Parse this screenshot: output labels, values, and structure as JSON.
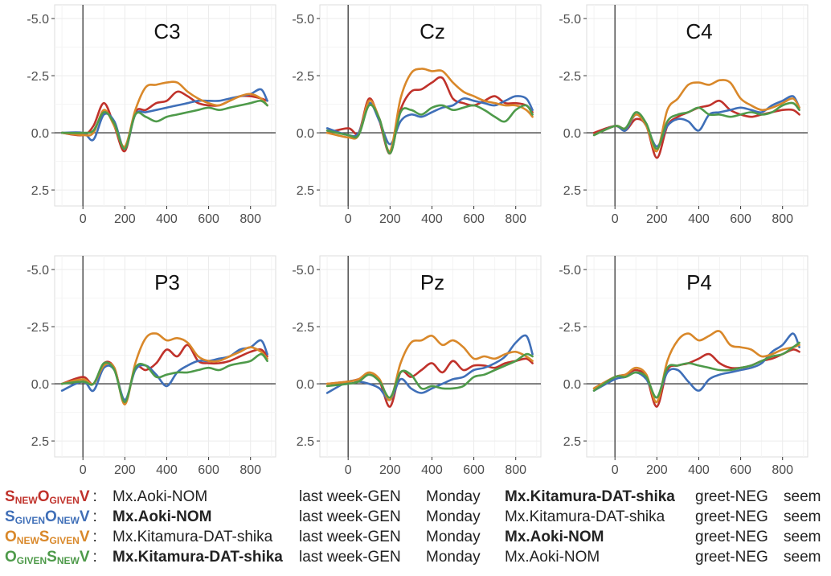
{
  "colors": {
    "SnewOgivenV": "#c0322b",
    "SgivenOnewV": "#3f6fb8",
    "OnewSgivenV": "#d9882a",
    "OgivenSnewV": "#4e9a4a",
    "panel_bg": "#ffffff",
    "grid": "#ebebeb",
    "zero_line": "#444444"
  },
  "chart_data": [
    {
      "type": "line",
      "title": "C3",
      "x": [
        -100,
        0,
        50,
        100,
        150,
        200,
        250,
        300,
        350,
        400,
        450,
        500,
        550,
        600,
        650,
        700,
        750,
        800,
        850,
        880
      ],
      "ylim": [
        2.5,
        -5.0
      ],
      "xticks": [
        0,
        200,
        400,
        600,
        800
      ],
      "yticks": [
        "-5.0",
        "-2.5",
        "0.0",
        "2.5"
      ],
      "grid": true,
      "series": [
        {
          "key": "SnewOgivenV",
          "values": [
            0,
            0.1,
            -0.3,
            -1.3,
            -0.3,
            0.8,
            -0.9,
            -1.0,
            -1.3,
            -1.4,
            -1.8,
            -1.6,
            -1.3,
            -1.2,
            -1.2,
            -1.4,
            -1.6,
            -1.6,
            -1.5,
            -1.4
          ]
        },
        {
          "key": "SgivenOnewV",
          "values": [
            0,
            0,
            0.3,
            -0.8,
            -0.5,
            0.7,
            -0.8,
            -0.9,
            -1.0,
            -1.1,
            -1.2,
            -1.3,
            -1.4,
            -1.4,
            -1.4,
            -1.5,
            -1.6,
            -1.7,
            -1.9,
            -1.4
          ]
        },
        {
          "key": "OnewSgivenV",
          "values": [
            0,
            0.1,
            0,
            -1.0,
            -0.3,
            0.6,
            -1.0,
            -2.0,
            -2.1,
            -2.2,
            -2.2,
            -1.8,
            -1.5,
            -1.3,
            -1.2,
            -1.4,
            -1.6,
            -1.7,
            -1.5,
            -1.2
          ]
        },
        {
          "key": "OgivenSnewV",
          "values": [
            0,
            0,
            -0.1,
            -0.9,
            -0.4,
            0.7,
            -0.8,
            -0.7,
            -0.5,
            -0.7,
            -0.8,
            -0.9,
            -1.0,
            -1.1,
            -1.0,
            -1.1,
            -1.2,
            -1.3,
            -1.4,
            -1.2
          ]
        }
      ]
    },
    {
      "type": "line",
      "title": "Cz",
      "x": [
        -100,
        0,
        50,
        100,
        150,
        200,
        250,
        300,
        350,
        400,
        450,
        500,
        550,
        600,
        650,
        700,
        750,
        800,
        850,
        880
      ],
      "ylim": [
        2.5,
        -5.0
      ],
      "xticks": [
        0,
        200,
        400,
        600,
        800
      ],
      "yticks": [
        "-5.0",
        "-2.5",
        "0.0",
        "2.5"
      ],
      "grid": true,
      "series": [
        {
          "key": "SnewOgivenV",
          "values": [
            0,
            -0.2,
            0,
            -1.5,
            -0.5,
            0.9,
            -1.0,
            -1.8,
            -1.9,
            -2.2,
            -2.4,
            -1.5,
            -1.3,
            -1.2,
            -1.4,
            -1.6,
            -1.3,
            -1.3,
            -1.2,
            -0.9
          ]
        },
        {
          "key": "SgivenOnewV",
          "values": [
            -0.2,
            0.1,
            0,
            -1.3,
            -0.5,
            0.5,
            -0.5,
            -0.8,
            -0.7,
            -0.9,
            -1.1,
            -1.2,
            -1.5,
            -1.4,
            -1.3,
            -1.2,
            -1.4,
            -1.6,
            -1.5,
            -1.0
          ]
        },
        {
          "key": "OnewSgivenV",
          "values": [
            0,
            0.2,
            0.1,
            -1.4,
            -0.6,
            0.8,
            -1.5,
            -2.6,
            -2.8,
            -2.7,
            -2.7,
            -2.2,
            -1.8,
            -1.6,
            -1.4,
            -1.3,
            -1.2,
            -1.2,
            -1.0,
            -0.7
          ]
        },
        {
          "key": "OgivenSnewV",
          "values": [
            -0.1,
            0.1,
            0.1,
            -1.2,
            -0.6,
            0.9,
            -0.9,
            -1.0,
            -0.8,
            -1.1,
            -1.2,
            -1.0,
            -1.1,
            -1.2,
            -1.0,
            -0.7,
            -0.5,
            -1.0,
            -1.2,
            -0.8
          ]
        }
      ]
    },
    {
      "type": "line",
      "title": "C4",
      "x": [
        -100,
        0,
        50,
        100,
        150,
        200,
        250,
        300,
        350,
        400,
        450,
        500,
        550,
        600,
        650,
        700,
        750,
        800,
        850,
        880
      ],
      "ylim": [
        2.5,
        -5.0
      ],
      "xticks": [
        0,
        200,
        400,
        600,
        800
      ],
      "yticks": [
        "-5.0",
        "-2.5",
        "0.0",
        "2.5"
      ],
      "grid": true,
      "series": [
        {
          "key": "SnewOgivenV",
          "values": [
            0,
            -0.3,
            -0.1,
            -0.6,
            -0.3,
            1.1,
            -0.3,
            -0.7,
            -0.9,
            -1.1,
            -1.2,
            -1.4,
            -1.0,
            -0.8,
            -0.7,
            -0.8,
            -0.9,
            -1.0,
            -1.0,
            -0.8
          ]
        },
        {
          "key": "SgivenOnewV",
          "values": [
            0.1,
            -0.3,
            -0.1,
            -0.8,
            -0.3,
            0.6,
            -0.3,
            -0.6,
            -0.5,
            -0.1,
            -0.8,
            -0.9,
            -1.0,
            -1.1,
            -1.0,
            -0.9,
            -1.2,
            -1.4,
            -1.6,
            -1.1
          ]
        },
        {
          "key": "OnewSgivenV",
          "values": [
            0.1,
            -0.3,
            -0.2,
            -0.8,
            -0.3,
            0.8,
            -1.0,
            -1.5,
            -2.1,
            -2.2,
            -2.1,
            -2.3,
            -2.2,
            -1.5,
            -1.2,
            -1.0,
            -1.1,
            -1.3,
            -1.5,
            -1.1
          ]
        },
        {
          "key": "OgivenSnewV",
          "values": [
            0.1,
            -0.3,
            -0.2,
            -0.9,
            -0.4,
            0.7,
            -0.5,
            -0.8,
            -0.9,
            -1.1,
            -0.8,
            -0.8,
            -0.7,
            -0.8,
            -0.9,
            -0.8,
            -0.9,
            -1.2,
            -1.3,
            -1.0
          ]
        }
      ]
    },
    {
      "type": "line",
      "title": "P3",
      "x": [
        -100,
        0,
        50,
        100,
        150,
        200,
        250,
        300,
        350,
        400,
        450,
        500,
        550,
        600,
        650,
        700,
        750,
        800,
        850,
        880
      ],
      "ylim": [
        2.5,
        -5.0
      ],
      "xticks": [
        0,
        200,
        400,
        600,
        800
      ],
      "yticks": [
        "-5.0",
        "-2.5",
        "0.0",
        "2.5"
      ],
      "grid": true,
      "series": [
        {
          "key": "SnewOgivenV",
          "values": [
            0,
            -0.3,
            0,
            -0.9,
            -0.7,
            0.8,
            -0.7,
            -0.6,
            -0.9,
            -1.5,
            -1.2,
            -1.7,
            -1.0,
            -0.9,
            -0.9,
            -1.0,
            -1.2,
            -1.4,
            -1.5,
            -1.2
          ]
        },
        {
          "key": "SgivenOnewV",
          "values": [
            0.3,
            -0.1,
            0.3,
            -0.7,
            -0.6,
            0.7,
            -0.6,
            -0.8,
            -0.4,
            0.1,
            -0.5,
            -0.8,
            -1.0,
            -1.0,
            -1.1,
            -1.2,
            -1.5,
            -1.6,
            -1.9,
            -1.3
          ]
        },
        {
          "key": "OnewSgivenV",
          "values": [
            0,
            -0.2,
            0,
            -0.8,
            -0.7,
            0.9,
            -0.9,
            -2.0,
            -2.2,
            -1.9,
            -2.0,
            -1.8,
            -1.2,
            -1.0,
            -1.0,
            -1.2,
            -1.4,
            -1.6,
            -1.4,
            -1.1
          ]
        },
        {
          "key": "OgivenSnewV",
          "values": [
            0,
            -0.1,
            0,
            -0.9,
            -0.6,
            0.8,
            -0.7,
            -0.8,
            -0.3,
            -0.4,
            -0.5,
            -0.5,
            -0.6,
            -0.7,
            -0.6,
            -0.8,
            -0.9,
            -1.0,
            -1.3,
            -1.0
          ]
        }
      ]
    },
    {
      "type": "line",
      "title": "Pz",
      "x": [
        -100,
        0,
        50,
        100,
        150,
        200,
        250,
        300,
        350,
        400,
        450,
        500,
        550,
        600,
        650,
        700,
        750,
        800,
        850,
        880
      ],
      "ylim": [
        2.5,
        -5.0
      ],
      "xticks": [
        0,
        200,
        400,
        600,
        800
      ],
      "yticks": [
        "-5.0",
        "-2.5",
        "0.0",
        "2.5"
      ],
      "grid": true,
      "series": [
        {
          "key": "SnewOgivenV",
          "values": [
            0,
            -0.1,
            -0.2,
            -0.4,
            -0.1,
            1.0,
            -0.5,
            -0.3,
            -0.6,
            -0.9,
            -0.5,
            -1.0,
            -0.6,
            -0.8,
            -0.8,
            -0.7,
            -0.9,
            -1.0,
            -1.1,
            -0.9
          ]
        },
        {
          "key": "SgivenOnewV",
          "values": [
            0.4,
            -0.1,
            -0.1,
            0,
            0.2,
            0.7,
            -0.2,
            0.2,
            0.4,
            0.2,
            0,
            -0.2,
            -0.3,
            -0.6,
            -0.7,
            -0.9,
            -1.2,
            -1.8,
            -2.1,
            -1.3
          ]
        },
        {
          "key": "OnewSgivenV",
          "values": [
            0,
            -0.1,
            -0.2,
            -0.5,
            -0.2,
            0.7,
            -0.9,
            -1.8,
            -1.9,
            -2.1,
            -1.7,
            -1.9,
            -1.6,
            -1.1,
            -1.2,
            -1.1,
            -1.3,
            -1.4,
            -1.2,
            -1.0
          ]
        },
        {
          "key": "OgivenSnewV",
          "values": [
            0.1,
            0,
            -0.1,
            -0.4,
            -0.1,
            0.6,
            -0.5,
            -0.4,
            0.2,
            0.1,
            0.2,
            0.2,
            0.1,
            -0.3,
            -0.4,
            -0.6,
            -0.8,
            -1.0,
            -1.3,
            -1.2
          ]
        }
      ]
    },
    {
      "type": "line",
      "title": "P4",
      "x": [
        -100,
        0,
        50,
        100,
        150,
        200,
        250,
        300,
        350,
        400,
        450,
        500,
        550,
        600,
        650,
        700,
        750,
        800,
        850,
        880
      ],
      "ylim": [
        2.5,
        -5.0
      ],
      "xticks": [
        0,
        200,
        400,
        600,
        800
      ],
      "yticks": [
        "-5.0",
        "-2.5",
        "0.0",
        "2.5"
      ],
      "grid": true,
      "series": [
        {
          "key": "SnewOgivenV",
          "values": [
            0.2,
            -0.3,
            -0.4,
            -0.6,
            -0.3,
            1.0,
            -0.6,
            -0.8,
            -0.9,
            -1.1,
            -1.3,
            -0.9,
            -0.7,
            -0.7,
            -0.8,
            -1.0,
            -1.1,
            -1.3,
            -1.5,
            -1.4
          ]
        },
        {
          "key": "SgivenOnewV",
          "values": [
            0.3,
            -0.2,
            -0.3,
            -0.5,
            -0.2,
            0.6,
            -0.5,
            -0.6,
            -0.1,
            0.3,
            -0.2,
            -0.4,
            -0.5,
            -0.6,
            -0.7,
            -0.9,
            -1.4,
            -1.7,
            -2.2,
            -1.6
          ]
        },
        {
          "key": "OnewSgivenV",
          "values": [
            0.2,
            -0.3,
            -0.4,
            -0.7,
            -0.4,
            0.8,
            -1.0,
            -1.9,
            -2.2,
            -1.9,
            -2.1,
            -2.3,
            -1.7,
            -1.6,
            -1.5,
            -1.2,
            -1.3,
            -1.5,
            -1.6,
            -1.7
          ]
        },
        {
          "key": "OgivenSnewV",
          "values": [
            0.3,
            -0.3,
            -0.3,
            -0.5,
            -0.3,
            0.6,
            -0.7,
            -0.8,
            -0.9,
            -0.8,
            -0.7,
            -0.6,
            -0.6,
            -0.7,
            -0.8,
            -1.0,
            -1.2,
            -1.3,
            -1.6,
            -1.8
          ]
        }
      ]
    }
  ],
  "legend": [
    {
      "key": "SnewOgivenV",
      "parts": [
        {
          "t": "S",
          "sub": "NEW"
        },
        {
          "t": "O",
          "sub": "GIVEN"
        },
        {
          "t": "V",
          "sub": ""
        }
      ],
      "cells": [
        "Mx.Aoki-NOM",
        "last week-GEN",
        "Monday",
        "Mx.Kitamura-DAT-shika",
        "greet-NEG",
        "seem"
      ],
      "bold": [
        3
      ]
    },
    {
      "key": "SgivenOnewV",
      "parts": [
        {
          "t": "S",
          "sub": "GIVEN"
        },
        {
          "t": "O",
          "sub": "NEW"
        },
        {
          "t": "V",
          "sub": ""
        }
      ],
      "cells": [
        "Mx.Aoki-NOM",
        "last week-GEN",
        "Monday",
        "Mx.Kitamura-DAT-shika",
        "greet-NEG",
        "seem"
      ],
      "bold": [
        0
      ]
    },
    {
      "key": "OnewSgivenV",
      "parts": [
        {
          "t": "O",
          "sub": "NEW"
        },
        {
          "t": "S",
          "sub": "GIVEN"
        },
        {
          "t": "V",
          "sub": ""
        }
      ],
      "cells": [
        "Mx.Kitamura-DAT-shika",
        "last week-GEN",
        "Monday",
        "Mx.Aoki-NOM",
        "greet-NEG",
        "seem"
      ],
      "bold": [
        3
      ]
    },
    {
      "key": "OgivenSnewV",
      "parts": [
        {
          "t": "O",
          "sub": "GIVEN"
        },
        {
          "t": "S",
          "sub": "NEW"
        },
        {
          "t": "V",
          "sub": ""
        }
      ],
      "cells": [
        "Mx.Kitamura-DAT-shika",
        "last week-GEN",
        "Monday",
        "Mx.Aoki-NOM",
        "greet-NEG",
        "seem"
      ],
      "bold": [
        0
      ]
    }
  ]
}
